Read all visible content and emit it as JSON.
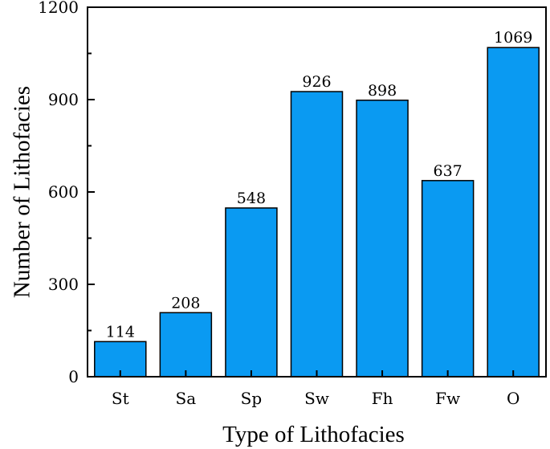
{
  "chart_data": {
    "type": "bar",
    "categories": [
      "St",
      "Sa",
      "Sp",
      "Sw",
      "Fh",
      "Fw",
      "O"
    ],
    "values": [
      114,
      208,
      548,
      926,
      898,
      637,
      1069
    ],
    "data_labels": [
      "114",
      "208",
      "548",
      "926",
      "898",
      "637",
      "1069"
    ],
    "title": "",
    "xlabel": "Type of Lithofacies",
    "ylabel": "Number of Lithofacies",
    "ylim": [
      0,
      1200
    ],
    "yticks": [
      0,
      300,
      600,
      900,
      1200
    ],
    "ytick_labels": [
      "0",
      "300",
      "600",
      "900",
      "1200"
    ],
    "grid": false,
    "legend": "none",
    "bar_color": "#0a9af2",
    "edge_color": "#000000"
  }
}
